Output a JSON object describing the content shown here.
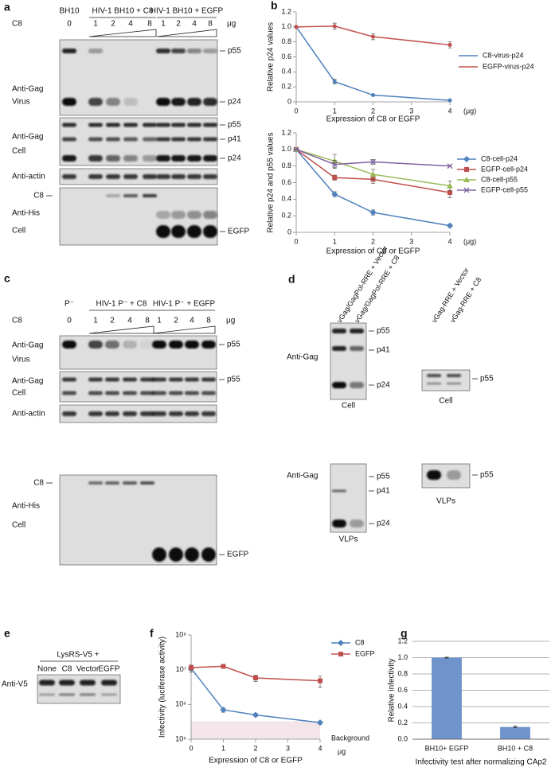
{
  "panels": {
    "a": {
      "letter": "a",
      "header": [
        "BH10",
        "HIV-1 BH10 + C8",
        "HIV-1 BH10 + EGFP"
      ],
      "row_label": "C8",
      "doses": [
        0,
        1,
        2,
        4,
        8,
        1,
        2,
        4,
        8
      ],
      "unit": "μg",
      "blots": [
        {
          "labels": [
            "Anti-Gag",
            "Virus"
          ],
          "markers": [
            "p55",
            "p24"
          ]
        },
        {
          "labels": [
            "Anti-Gag",
            "Cell"
          ],
          "markers": [
            "p55",
            "p41",
            "p24"
          ]
        },
        {
          "labels": [
            "Anti-actin"
          ],
          "markers": []
        },
        {
          "labels": [
            "Anti-His",
            "Cell"
          ],
          "markers": [
            "EGFP"
          ],
          "left_marker": "C8"
        }
      ]
    },
    "b": {
      "letter": "b"
    },
    "c": {
      "letter": "c",
      "header": [
        "P⁻",
        "HIV-1 P⁻ + C8",
        "HIV-1 P⁻ + EGFP"
      ],
      "row_label": "C8",
      "doses": [
        0,
        1,
        2,
        4,
        8,
        1,
        2,
        4,
        8
      ],
      "unit": "μg",
      "blots": [
        {
          "labels": [
            "Anti-Gag",
            "Virus"
          ],
          "markers": [
            "p55"
          ]
        },
        {
          "labels": [
            "Anti-Gag",
            "Cell"
          ],
          "markers": [
            "p55"
          ]
        },
        {
          "labels": [
            "Anti-actin"
          ],
          "markers": []
        },
        {
          "labels": [
            "Anti-His",
            "Cell"
          ],
          "markers": [
            "EGFP"
          ],
          "left_marker": "C8"
        }
      ]
    },
    "d": {
      "letter": "d",
      "lanes_left": [
        "vGag/GagPol-RRE + Vector",
        "vGag/GagPol-RRE + C8"
      ],
      "lanes_right": [
        "vGag-RRE + Vector",
        "vGag-RRE + C8"
      ],
      "blots": [
        {
          "label": "Anti-Gag",
          "markers": [
            "p55",
            "p41",
            "p24"
          ],
          "caption": "Cell"
        },
        {
          "markers": [
            "p55"
          ],
          "caption": "Cell"
        },
        {
          "label": "Anti-Gag",
          "markers": [
            "p55",
            "p41",
            "p24"
          ],
          "caption": "VLPs"
        },
        {
          "markers": [
            "p55"
          ],
          "caption": "VLPs"
        }
      ]
    },
    "e": {
      "letter": "e",
      "header": "LysRS-V5 +",
      "lanes": [
        "None",
        "C8",
        "Vector",
        "EGFP"
      ],
      "label": "Anti-V5"
    },
    "f": {
      "letter": "f"
    },
    "g": {
      "letter": "g"
    }
  },
  "chart_data": [
    {
      "type": "line",
      "ylabel": "Relative p24 values",
      "xlabel": "Expression of C8 or EGFP",
      "x_unit": "(μg)",
      "x": [
        0,
        1,
        2,
        4
      ],
      "xlim": [
        0,
        4
      ],
      "xticks": [
        0,
        1,
        2,
        3,
        4
      ],
      "ylim": [
        0,
        1.2
      ],
      "yticks": [
        0,
        0.2,
        0.4,
        0.6,
        0.8,
        {
          "value": 1,
          "label": "1.0"
        },
        1.2
      ],
      "legend": "right",
      "series": [
        {
          "name": "C8-virus-p24",
          "color": "#4f81bd",
          "marker": "circle",
          "values": [
            1,
            0.27,
            0.09,
            0.02
          ],
          "errors": [
            0.005,
            0.03,
            0.01,
            0.005
          ]
        },
        {
          "name": "EGFP-virus-p24",
          "color": "#c0504d",
          "marker": "circle",
          "values": [
            1,
            1.01,
            0.87,
            0.76
          ],
          "errors": [
            0.005,
            0.04,
            0.04,
            0.04
          ]
        }
      ]
    },
    {
      "type": "line",
      "ylabel": "Relative p24 and p55 values",
      "xlabel": "Expression of C8 or EGFP",
      "x_unit": "(μg)",
      "x": [
        0,
        1,
        2,
        4
      ],
      "xlim": [
        0,
        4
      ],
      "xticks": [
        0,
        1,
        2,
        3,
        4
      ],
      "ylim": [
        0,
        1.2
      ],
      "yticks": [
        0,
        0.2,
        0.4,
        0.6,
        0.8,
        {
          "value": 1,
          "label": "1.0"
        },
        1.2
      ],
      "legend": "right",
      "series": [
        {
          "name": "C8-cell-p24",
          "color": "#4f81bd",
          "marker": "diamond",
          "values": [
            1,
            0.46,
            0.24,
            0.08
          ],
          "errors": [
            0.01,
            0.03,
            0.03,
            0.02
          ]
        },
        {
          "name": "EGFP-cell-p24",
          "color": "#c0504d",
          "marker": "square",
          "values": [
            1,
            0.66,
            0.64,
            0.48
          ],
          "errors": [
            0.01,
            0.03,
            0.05,
            0.06
          ]
        },
        {
          "name": "C8-cell-p55",
          "color": "#9bbb59",
          "marker": "triangle",
          "values": [
            1,
            0.86,
            0.7,
            0.56
          ],
          "errors": [
            0.01,
            0.08,
            0.06,
            0.06
          ]
        },
        {
          "name": "EGFP-cell-p55",
          "color": "#8064a2",
          "marker": "cross",
          "values": [
            1,
            0.82,
            0.85,
            0.8
          ],
          "errors": [
            0.01,
            0.05,
            0.03,
            0.01
          ]
        }
      ]
    },
    {
      "type": "line",
      "log_y": true,
      "ylabel": "Infectivity (luciferase activity)",
      "xlabel": "Expression of C8 or EGFP",
      "x_unit": "μg",
      "x": [
        0,
        1,
        2,
        4
      ],
      "xlim": [
        0,
        4
      ],
      "xticks": [
        0,
        1,
        2,
        3,
        4
      ],
      "ylim": [
        100000,
        100000000
      ],
      "yticks": [
        {
          "value": 100000,
          "label": "10⁵"
        },
        {
          "value": 1000000,
          "label": "10⁶"
        },
        {
          "value": 10000000,
          "label": "10⁷"
        },
        {
          "value": 100000000,
          "label": "10⁸"
        }
      ],
      "background": {
        "label": "Background",
        "level": 330000
      },
      "legend": "upper right",
      "series": [
        {
          "name": "C8",
          "color": "#4f81bd",
          "marker": "diamond",
          "values": [
            11000000,
            700000,
            500000,
            300000
          ],
          "errors": [
            2500000,
            100000,
            50000,
            30000
          ]
        },
        {
          "name": "EGFP",
          "color": "#c0504d",
          "marker": "square",
          "values": [
            11500000,
            12500000,
            5800000,
            4800000
          ],
          "errors": [
            2000000,
            1500000,
            1200000,
            1700000
          ]
        }
      ]
    },
    {
      "type": "bar",
      "ylabel": "Relative infectivity",
      "xlabel": "Infectivity test after normalizing CAp2",
      "categories": [
        "BH10+ EGFP",
        "BH10 + C8"
      ],
      "values": [
        1,
        0.15
      ],
      "errors": [
        0.005,
        0.01
      ],
      "color": "#6f93cb",
      "ylim": [
        0,
        1.2
      ],
      "yticks": [
        {
          "value": 0,
          "label": "0.0"
        },
        0.2,
        0.4,
        0.6,
        0.8,
        {
          "value": 1,
          "label": "1.0"
        },
        1.2
      ],
      "grid": true
    }
  ]
}
